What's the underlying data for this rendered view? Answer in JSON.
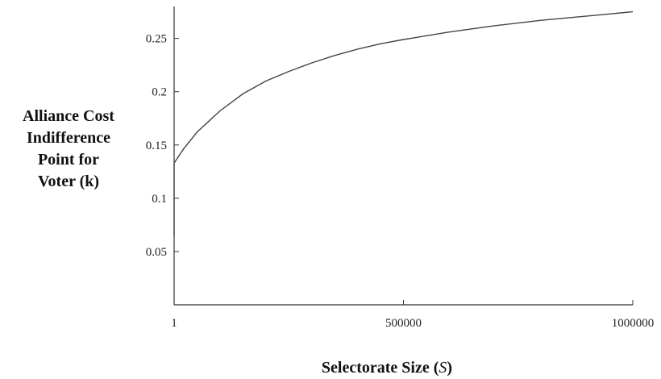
{
  "chart_data": {
    "type": "line",
    "title": "",
    "xlabel": {
      "main": "Selectorate Size (",
      "var": "S",
      "close": ")"
    },
    "ylabel_lines": [
      "Alliance Cost",
      "Indifference",
      "Point for",
      "Voter (k)"
    ],
    "xlim": [
      1,
      1000000
    ],
    "ylim": [
      0,
      0.28
    ],
    "xticks": [
      {
        "value": 1,
        "label": "1"
      },
      {
        "value": 500000,
        "label": "500000"
      },
      {
        "value": 1000000,
        "label": "1000000"
      }
    ],
    "yticks": [
      {
        "value": 0.05,
        "label": "0.05"
      },
      {
        "value": 0.1,
        "label": "0.1"
      },
      {
        "value": 0.15,
        "label": "0.15"
      },
      {
        "value": 0.2,
        "label": "0.2"
      },
      {
        "value": 0.25,
        "label": "0.25"
      }
    ],
    "grid": false,
    "series": [
      {
        "color": "#444444",
        "x": [
          1,
          20000,
          50000,
          100000,
          150000,
          200000,
          250000,
          300000,
          350000,
          400000,
          450000,
          500000,
          600000,
          700000,
          800000,
          900000,
          1000000
        ],
        "y": [
          0.133,
          0.146,
          0.162,
          0.182,
          0.198,
          0.21,
          0.219,
          0.227,
          0.234,
          0.24,
          0.245,
          0.249,
          0.256,
          0.262,
          0.267,
          0.271,
          0.275
        ]
      }
    ],
    "initial_spike": {
      "x": 1,
      "y_from": 0.065,
      "y_to": 0.133
    }
  }
}
